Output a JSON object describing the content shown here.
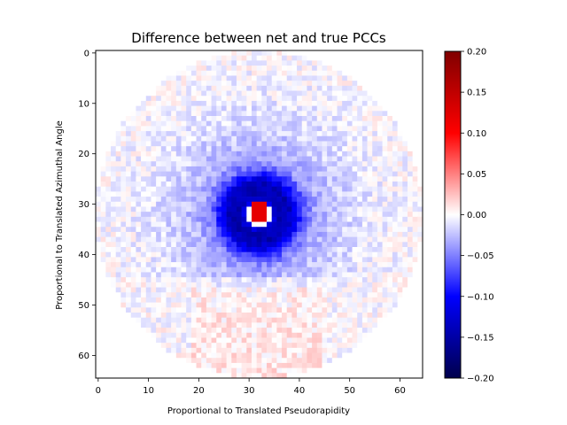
{
  "chart_data": {
    "type": "heatmap",
    "title": "Difference between net and true PCCs",
    "xlabel": "Proportional to Translated Pseudorapidity",
    "ylabel": "Proportional to Translated Azimuthal Angle",
    "grid_size": 65,
    "xlim": [
      -0.5,
      64.5
    ],
    "ylim": [
      64.5,
      -0.5
    ],
    "x_ticks": [
      0,
      10,
      20,
      30,
      40,
      50,
      60
    ],
    "y_ticks": [
      0,
      10,
      20,
      30,
      40,
      50,
      60
    ],
    "colormap": "seismic",
    "colormap_stops": [
      "#00004c",
      "#0000ff",
      "#ffffff",
      "#ff0000",
      "#800000"
    ],
    "vmin": -0.2,
    "vmax": 0.2,
    "colorbar_ticks": [
      "0.20",
      "0.15",
      "0.10",
      "0.05",
      "0.00",
      "−0.05",
      "−0.10",
      "−0.15",
      "−0.20"
    ],
    "colorbar_values": [
      0.2,
      0.15,
      0.1,
      0.05,
      0.0,
      -0.05,
      -0.1,
      -0.15,
      -0.2
    ],
    "features": {
      "center": [
        32,
        32
      ],
      "disk_radius": 32,
      "core_peak_value": 0.12,
      "core_extent": {
        "x": [
          31,
          33
        ],
        "y": [
          30,
          33
        ]
      },
      "ring_value": -0.1,
      "ring_radius": 5,
      "halo_value": -0.05,
      "lower_region_value": 0.01,
      "noise_amplitude": 0.015
    }
  }
}
